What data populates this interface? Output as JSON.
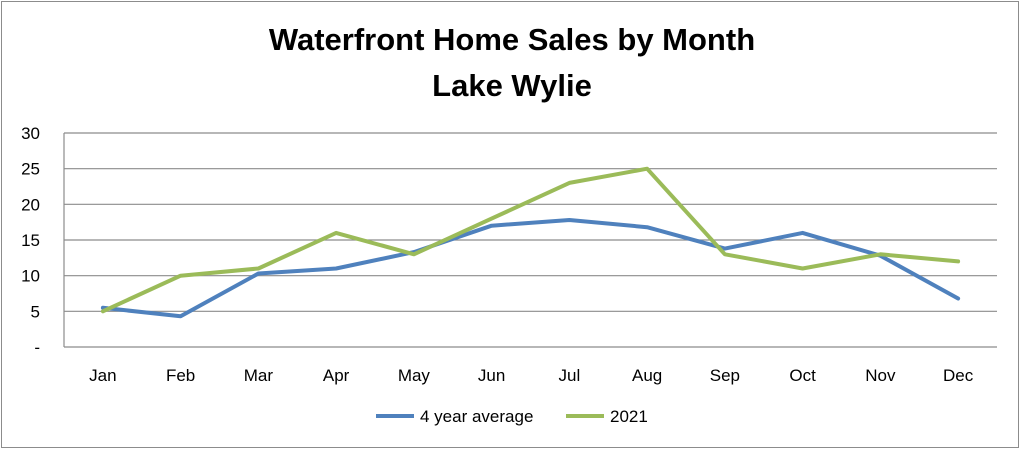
{
  "chart_data": {
    "type": "line",
    "title": "Waterfront Home Sales by Month",
    "subtitle": "Lake Wylie",
    "categories": [
      "Jan",
      "Feb",
      "Mar",
      "Apr",
      "May",
      "Jun",
      "Jul",
      "Aug",
      "Sep",
      "Oct",
      "Nov",
      "Dec"
    ],
    "series": [
      {
        "name": "4 year average",
        "color": "#4f81bd",
        "values": [
          5.5,
          4.3,
          10.3,
          11,
          13.3,
          17,
          17.8,
          16.8,
          13.8,
          16,
          12.8,
          6.8
        ]
      },
      {
        "name": "2021",
        "color": "#9bbb59",
        "values": [
          5,
          10,
          11,
          16,
          13,
          18,
          23,
          25,
          13,
          11,
          13,
          12
        ]
      }
    ],
    "ylim": [
      0,
      30
    ],
    "yticks": [
      0,
      5,
      10,
      15,
      20,
      25,
      30
    ],
    "ytick_labels": [
      "-",
      "5",
      "10",
      "15",
      "20",
      "25",
      "30"
    ],
    "grid": true,
    "legend": "bottom"
  }
}
